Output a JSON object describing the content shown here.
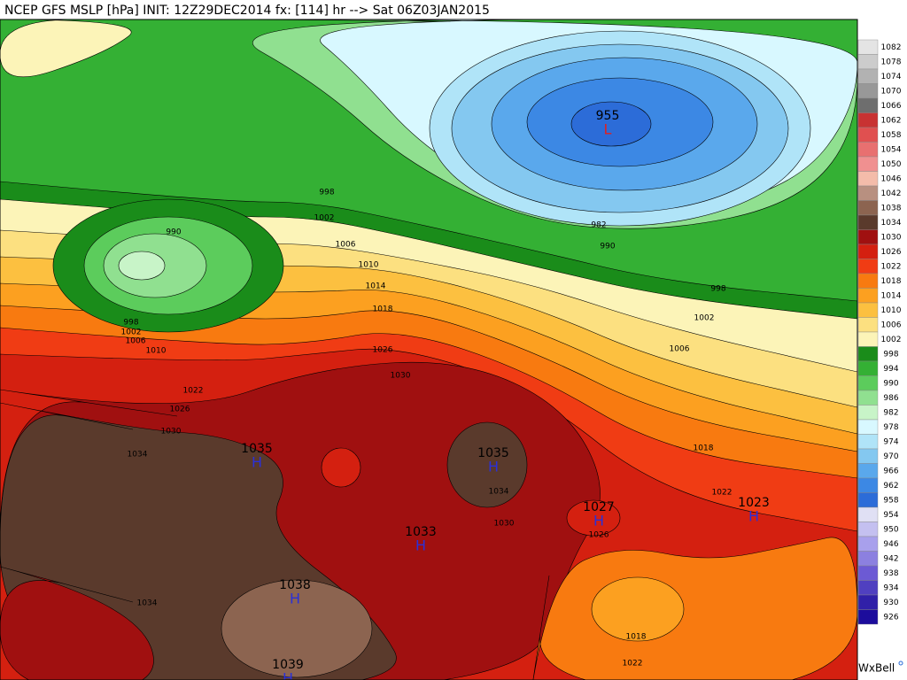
{
  "header": {
    "title": "NCEP GFS MSLP [hPa] INIT: 12Z29DEC2014 fx: [114] hr --> Sat 06Z03JAN2015"
  },
  "legend": {
    "items": [
      {
        "label": 1082,
        "color": "#e4e4e4"
      },
      {
        "label": 1078,
        "color": "#cccccc"
      },
      {
        "label": 1074,
        "color": "#b2b2b2"
      },
      {
        "label": 1070,
        "color": "#989898"
      },
      {
        "label": 1066,
        "color": "#6e6e6e"
      },
      {
        "label": 1062,
        "color": "#c83232"
      },
      {
        "label": 1058,
        "color": "#e05050"
      },
      {
        "label": 1054,
        "color": "#e87070"
      },
      {
        "label": 1050,
        "color": "#f09090"
      },
      {
        "label": 1046,
        "color": "#f4bcaa"
      },
      {
        "label": 1042,
        "color": "#b89080"
      },
      {
        "label": 1038,
        "color": "#8c6450"
      },
      {
        "label": 1034,
        "color": "#5a3a2c"
      },
      {
        "label": 1030,
        "color": "#a01010"
      },
      {
        "label": 1026,
        "color": "#d42010"
      },
      {
        "label": 1022,
        "color": "#f03c14"
      },
      {
        "label": 1018,
        "color": "#f87a10"
      },
      {
        "label": 1014,
        "color": "#fca020"
      },
      {
        "label": 1010,
        "color": "#fcc040"
      },
      {
        "label": 1006,
        "color": "#fce080"
      },
      {
        "label": 1002,
        "color": "#fcf4b8"
      },
      {
        "label": 998,
        "color": "#1a8c1a"
      },
      {
        "label": 994,
        "color": "#34b034"
      },
      {
        "label": 990,
        "color": "#5ccc5c"
      },
      {
        "label": 986,
        "color": "#90e090"
      },
      {
        "label": 982,
        "color": "#c8f4c8"
      },
      {
        "label": 978,
        "color": "#d8f8ff"
      },
      {
        "label": 974,
        "color": "#b0e4f8"
      },
      {
        "label": 970,
        "color": "#84c8f0"
      },
      {
        "label": 966,
        "color": "#5aa8ec"
      },
      {
        "label": 962,
        "color": "#3c88e4"
      },
      {
        "label": 958,
        "color": "#2c6cd8"
      },
      {
        "label": 954,
        "color": "#e0e0f4"
      },
      {
        "label": 950,
        "color": "#c4c0f0"
      },
      {
        "label": 946,
        "color": "#a8a0ec"
      },
      {
        "label": 942,
        "color": "#8c80e0"
      },
      {
        "label": 938,
        "color": "#6c5ad4"
      },
      {
        "label": 934,
        "color": "#5040c0"
      },
      {
        "label": 930,
        "color": "#3020a8"
      },
      {
        "label": 926,
        "color": "#1c0c9c"
      }
    ]
  },
  "centers": [
    {
      "value": 955,
      "symbol": "L"
    },
    {
      "value": 1035,
      "symbol": "H"
    },
    {
      "value": 1035,
      "symbol": "H"
    },
    {
      "value": 1027,
      "symbol": "H"
    },
    {
      "value": 1023,
      "symbol": "H"
    },
    {
      "value": 1033,
      "symbol": "H"
    },
    {
      "value": 1038,
      "symbol": "H"
    },
    {
      "value": 1039,
      "symbol": "H"
    }
  ],
  "contour_labels": [
    990,
    998,
    1002,
    1006,
    1010,
    1014,
    1018,
    1026,
    1030,
    1022,
    1026,
    1030,
    1034,
    982,
    990,
    998,
    1002,
    1006,
    1018,
    1022,
    1026,
    1030,
    1034,
    1018,
    1022,
    1034,
    998,
    1002,
    1006,
    1010
  ],
  "credit": "WxBell"
}
